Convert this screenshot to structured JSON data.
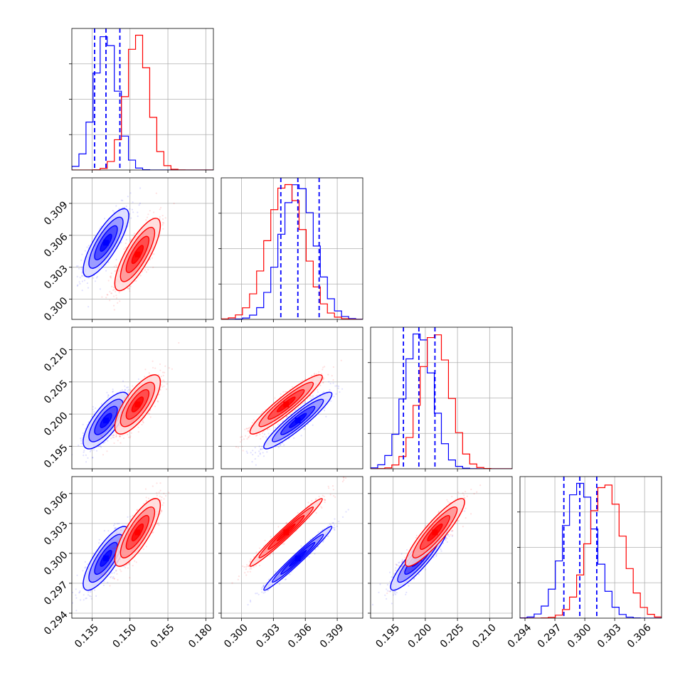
{
  "colors": {
    "series_a": "#0000ff",
    "series_b": "#ff0000",
    "grid": "#b0b0b0",
    "frame": "#000000"
  },
  "chart_data": {
    "type": "corner",
    "layout": "lower-triangle 4x4 grid of panels; diagonal = 1D histograms, off-diagonal = 2D scatter + density contours",
    "grid": true,
    "series": [
      {
        "color": "#0000ff",
        "means": [
          0.1405,
          0.3053,
          0.199,
          0.2995
        ],
        "sds": [
          0.0045,
          0.0016,
          0.0022,
          0.0016
        ],
        "corr": [
          [
            1,
            0.8,
            0.75,
            0.8
          ],
          [
            0.8,
            1,
            0.93,
            0.98
          ],
          [
            0.75,
            0.93,
            1,
            0.9
          ],
          [
            0.8,
            0.98,
            0.9,
            1
          ]
        ],
        "quantile_lines": [
          [
            0.136,
            0.1405,
            0.146
          ],
          [
            0.3037,
            0.3053,
            0.3073
          ],
          [
            0.1966,
            0.199,
            0.2015
          ],
          [
            0.2979,
            0.2995,
            0.3012
          ]
        ]
      },
      {
        "color": "#ff0000",
        "means": [
          0.153,
          0.3042,
          0.2015,
          0.3021
        ],
        "sds": [
          0.0045,
          0.0017,
          0.0023,
          0.0017
        ],
        "corr": [
          [
            1,
            0.8,
            0.75,
            0.8
          ],
          [
            0.8,
            1,
            0.93,
            0.98
          ],
          [
            0.75,
            0.93,
            1,
            0.9
          ],
          [
            0.8,
            0.98,
            0.9,
            1
          ]
        ]
      }
    ],
    "axes": [
      {
        "range": [
          0.127,
          0.183
        ],
        "ticks": [
          0.135,
          0.15,
          0.165,
          0.18
        ],
        "tick_labels": [
          "0.135",
          "0.150",
          "0.165",
          "0.180"
        ]
      },
      {
        "range": [
          0.2981,
          0.3114
        ],
        "ticks": [
          0.3,
          0.303,
          0.306,
          0.309
        ],
        "tick_labels": [
          "0.300",
          "0.303",
          "0.306",
          "0.309"
        ]
      },
      {
        "range": [
          0.1915,
          0.2135
        ],
        "ticks": [
          0.195,
          0.2,
          0.205,
          0.21
        ],
        "tick_labels": [
          "0.195",
          "0.200",
          "0.205",
          "0.210"
        ]
      },
      {
        "range": [
          0.2935,
          0.3077
        ],
        "ticks": [
          0.294,
          0.297,
          0.3,
          0.303,
          0.306
        ],
        "tick_labels": [
          "0.294",
          "0.297",
          "0.300",
          "0.303",
          "0.306"
        ]
      }
    ],
    "contour_levels_sigma": [
      0.5,
      1.0,
      1.5,
      2.0
    ],
    "hist_bins": 20
  }
}
